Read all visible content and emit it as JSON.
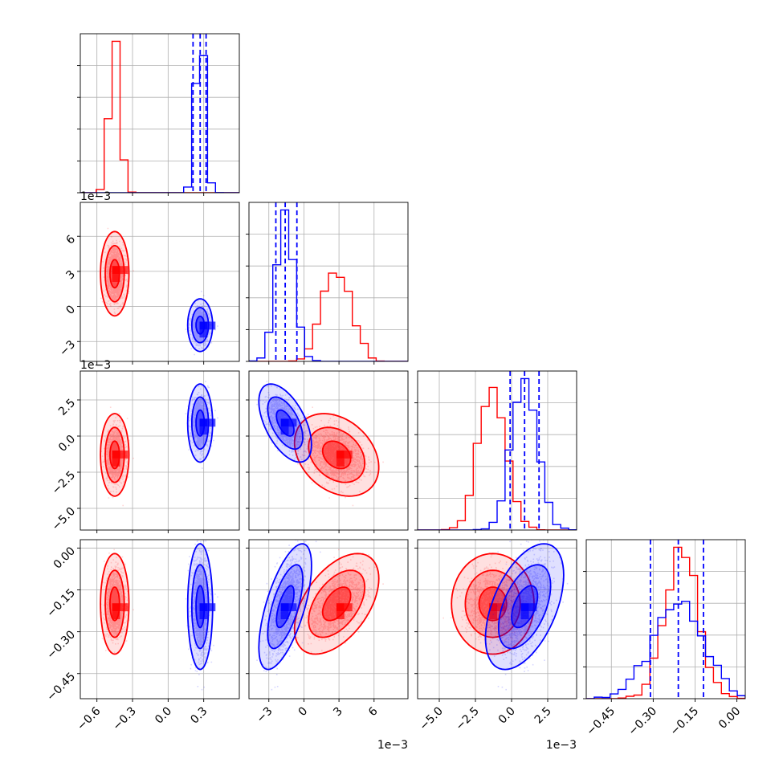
{
  "chart_data": {
    "type": "corner",
    "params": [
      {
        "ticks": [
          -0.6,
          -0.3,
          0.0,
          0.3
        ],
        "labels": [
          "−0.6",
          "−0.3",
          "0.0",
          "0.3"
        ],
        "range": [
          -0.74,
          0.6
        ],
        "multiplier": ""
      },
      {
        "ticks": [
          -3,
          0,
          3,
          6
        ],
        "labels": [
          "−3",
          "0",
          "3",
          "6"
        ],
        "range": [
          -4.7,
          8.9
        ],
        "multiplier": "1e−3"
      },
      {
        "ticks": [
          -5.0,
          -2.5,
          0.0,
          2.5
        ],
        "labels": [
          "−5.0",
          "−2.5",
          "0.0",
          "2.5"
        ],
        "range": [
          -6.5,
          4.5
        ],
        "multiplier": "1e−3"
      },
      {
        "ticks": [
          -0.45,
          -0.3,
          -0.15,
          0.0
        ],
        "labels": [
          "−0.45",
          "−0.30",
          "−0.15",
          "0.00"
        ],
        "range": [
          -0.54,
          0.03
        ],
        "multiplier": ""
      }
    ],
    "series": [
      {
        "color": "#ff0000",
        "mean": [
          -0.45,
          2.8,
          -1.3,
          -0.2
        ],
        "sd": [
          0.04,
          1.2,
          0.95,
          0.06
        ],
        "corr": [
          [
            1,
            0,
            0,
            0
          ],
          [
            0,
            1,
            -0.3,
            0.5
          ],
          [
            0,
            -0.3,
            1,
            0
          ],
          [
            0,
            0.5,
            0,
            1
          ]
        ]
      },
      {
        "color": "#0000ff",
        "mean": [
          0.27,
          -1.6,
          0.9,
          -0.21
        ],
        "sd": [
          0.035,
          0.75,
          0.9,
          0.075
        ],
        "corr": [
          [
            1,
            0,
            0,
            0
          ],
          [
            0,
            1,
            -0.55,
            0.65
          ],
          [
            0,
            -0.55,
            1,
            0.5
          ],
          [
            0,
            0.65,
            0.5,
            1
          ]
        ]
      }
    ],
    "quantiles": {
      "color": "#0000ff",
      "values": [
        [
          0.21,
          0.27,
          0.32
        ],
        [
          -2.4,
          -1.6,
          -0.6
        ],
        [
          -0.1,
          0.9,
          1.9
        ],
        [
          -0.31,
          -0.21,
          -0.12
        ]
      ]
    },
    "grid": true,
    "legend": "none"
  }
}
